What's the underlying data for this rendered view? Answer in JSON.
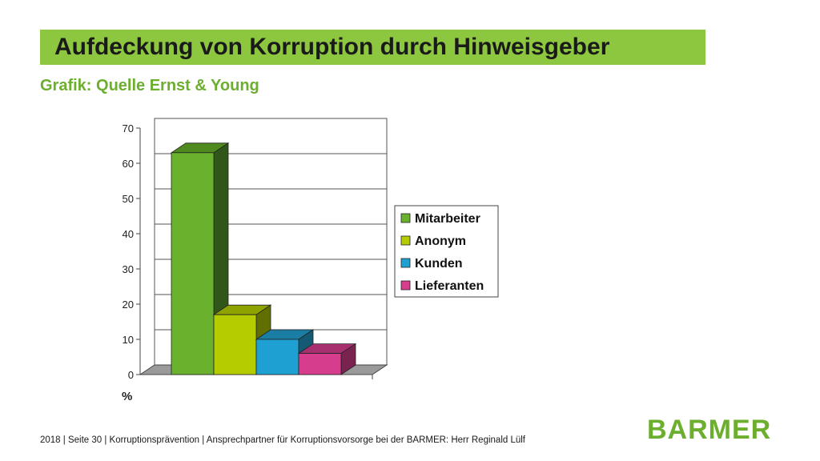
{
  "slide": {
    "title": "Aufdeckung von Korruption durch Hinweisgeber",
    "subtitle": "Grafik: Quelle Ernst & Young",
    "footer": "2018 | Seite 30 | Korruptionsprävention | Ansprechpartner für Korruptionsvorsorge bei der BARMER: Herr Reginald Lülf",
    "logo": "BARMER"
  },
  "colors": {
    "title_bar": "#8dc63f",
    "subtitle": "#6cae2e",
    "logo": "#6cae2e"
  },
  "chart_data": {
    "type": "bar",
    "style": "3d-column",
    "title": "",
    "xlabel": "",
    "ylabel": "%",
    "ylim": [
      0,
      70
    ],
    "yticks": [
      "0",
      "10",
      "20",
      "30",
      "40",
      "50",
      "60",
      "70"
    ],
    "grid": true,
    "legend_position": "right",
    "series": [
      {
        "name": "Mitarbeiter",
        "value": 63,
        "color": "#6ab22e",
        "top_color": "#4f8a1f",
        "side_color": "#30561a"
      },
      {
        "name": "Anonym",
        "value": 17,
        "color": "#b5cc00",
        "top_color": "#8fa300",
        "side_color": "#626f00"
      },
      {
        "name": "Kunden",
        "value": 10,
        "color": "#1ea1d2",
        "top_color": "#1a7ea4",
        "side_color": "#145a75"
      },
      {
        "name": "Lieferanten",
        "value": 6,
        "color": "#d63d8c",
        "top_color": "#a73070",
        "side_color": "#7a2250"
      }
    ]
  }
}
